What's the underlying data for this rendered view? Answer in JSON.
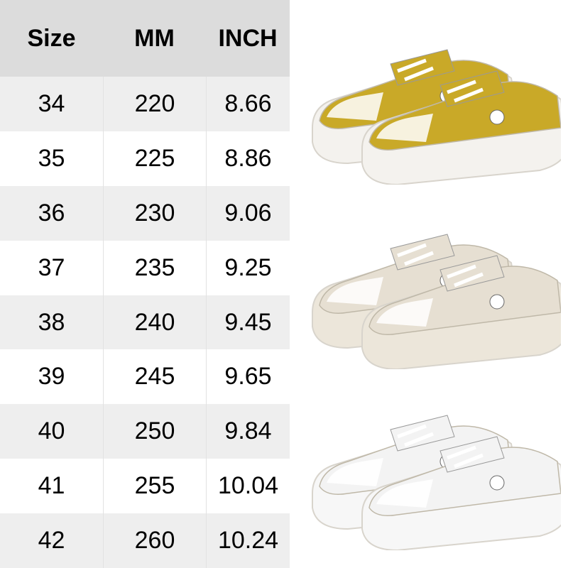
{
  "table": {
    "headers": [
      "Size",
      "MM",
      "INCH"
    ],
    "rows": [
      [
        "34",
        "220",
        "8.66"
      ],
      [
        "35",
        "225",
        "8.86"
      ],
      [
        "36",
        "230",
        "9.06"
      ],
      [
        "37",
        "235",
        "9.25"
      ],
      [
        "38",
        "240",
        "9.45"
      ],
      [
        "39",
        "245",
        "9.65"
      ],
      [
        "40",
        "250",
        "9.84"
      ],
      [
        "41",
        "255",
        "10.04"
      ],
      [
        "42",
        "260",
        "10.24"
      ]
    ]
  },
  "products": [
    {
      "color_name": "yellow",
      "upper": "#c9a928",
      "sole": "#f4f2ee"
    },
    {
      "color_name": "beige",
      "upper": "#e6dfd2",
      "sole": "#ece6da"
    },
    {
      "color_name": "white",
      "upper": "#f3f3f3",
      "sole": "#f7f7f7"
    }
  ]
}
